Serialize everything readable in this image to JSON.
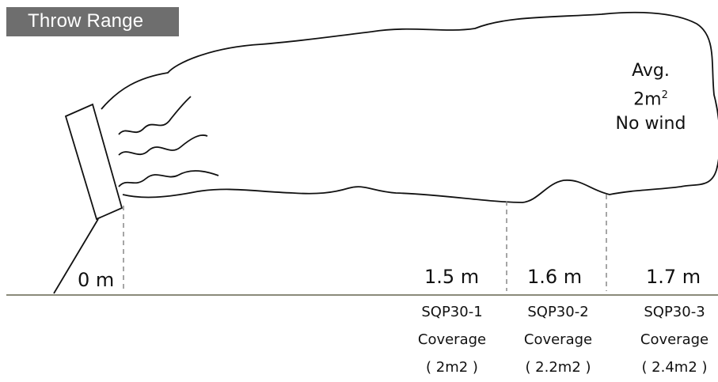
{
  "title": "Throw Range",
  "note": {
    "line1": "Avg.",
    "line2_base": "2m",
    "line2_sup": "2",
    "line3": "No wind"
  },
  "distances": [
    "0 m",
    "1.5 m",
    "1.6 m",
    "1.7 m"
  ],
  "models": [
    {
      "name": "SQP30-1",
      "coverage_label": "Coverage",
      "coverage_value": "( 2m2 )"
    },
    {
      "name": "SQP30-2",
      "coverage_label": "Coverage",
      "coverage_value": "( 2.2m2 )"
    },
    {
      "name": "SQP30-3",
      "coverage_label": "Coverage",
      "coverage_value": "( 2.4m2 )"
    }
  ],
  "colors": {
    "title_bg": "#6e6e6e",
    "ground": "#8a8a7a",
    "dash": "#888888",
    "outline": "#111111"
  }
}
